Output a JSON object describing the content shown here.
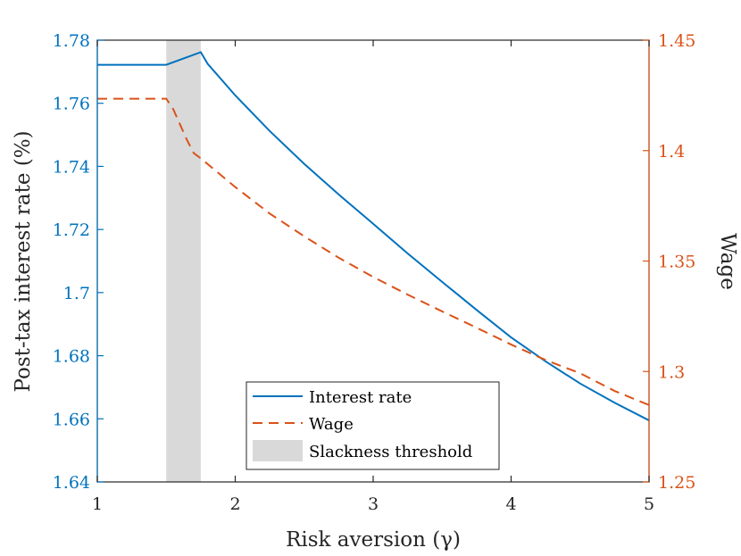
{
  "chart_data": {
    "type": "line",
    "xlabel": "Risk aversion (γ)",
    "ylabel_left": "Post-tax interest rate (%)",
    "ylabel_right": "Wage",
    "xlim": [
      1,
      5
    ],
    "ylim_left": [
      1.64,
      1.78
    ],
    "ylim_right": [
      1.25,
      1.45
    ],
    "x_ticks": [
      "1",
      "2",
      "3",
      "4",
      "5"
    ],
    "y_ticks_left": [
      "1.64",
      "1.66",
      "1.68",
      "1.7",
      "1.72",
      "1.74",
      "1.76",
      "1.78"
    ],
    "y_ticks_right": [
      "1.25",
      "1.3",
      "1.35",
      "1.4",
      "1.45"
    ],
    "shaded_region": {
      "name": "Slackness threshold",
      "x_range": [
        1.5,
        1.75
      ]
    },
    "series": [
      {
        "name": "Interest rate",
        "axis": "left",
        "style": "solid",
        "x": [
          1.0,
          1.5,
          1.75,
          1.8,
          2.0,
          2.25,
          2.5,
          2.75,
          3.0,
          3.25,
          3.5,
          3.75,
          4.0,
          4.25,
          4.5,
          4.75,
          5.0
        ],
        "y": [
          1.7722,
          1.7722,
          1.7762,
          1.7725,
          1.7625,
          1.7512,
          1.7408,
          1.7311,
          1.7218,
          1.7124,
          1.7034,
          1.6945,
          1.6858,
          1.6782,
          1.6712,
          1.6651,
          1.6595
        ]
      },
      {
        "name": "Wage",
        "axis": "right",
        "style": "dashed",
        "x": [
          1.0,
          1.5,
          1.55,
          1.6,
          1.65,
          1.7,
          1.75,
          2.0,
          2.25,
          2.5,
          2.75,
          3.0,
          3.25,
          3.5,
          3.75,
          4.0,
          4.25,
          4.5,
          4.75,
          5.0
        ],
        "y": [
          1.4235,
          1.4235,
          1.4188,
          1.4118,
          1.4048,
          1.3988,
          1.3965,
          1.3835,
          1.3715,
          1.3612,
          1.3515,
          1.3428,
          1.3348,
          1.3272,
          1.3198,
          1.3122,
          1.3052,
          1.2992,
          1.2912,
          1.2848
        ]
      }
    ],
    "legend": {
      "position": "bottom-center",
      "entries": [
        "Interest rate",
        "Wage",
        "Slackness threshold"
      ]
    }
  },
  "colors": {
    "interest_rate": "#0072BD",
    "wage": "#D95319",
    "shade": "#D9D9D9",
    "axis": "#262626"
  }
}
